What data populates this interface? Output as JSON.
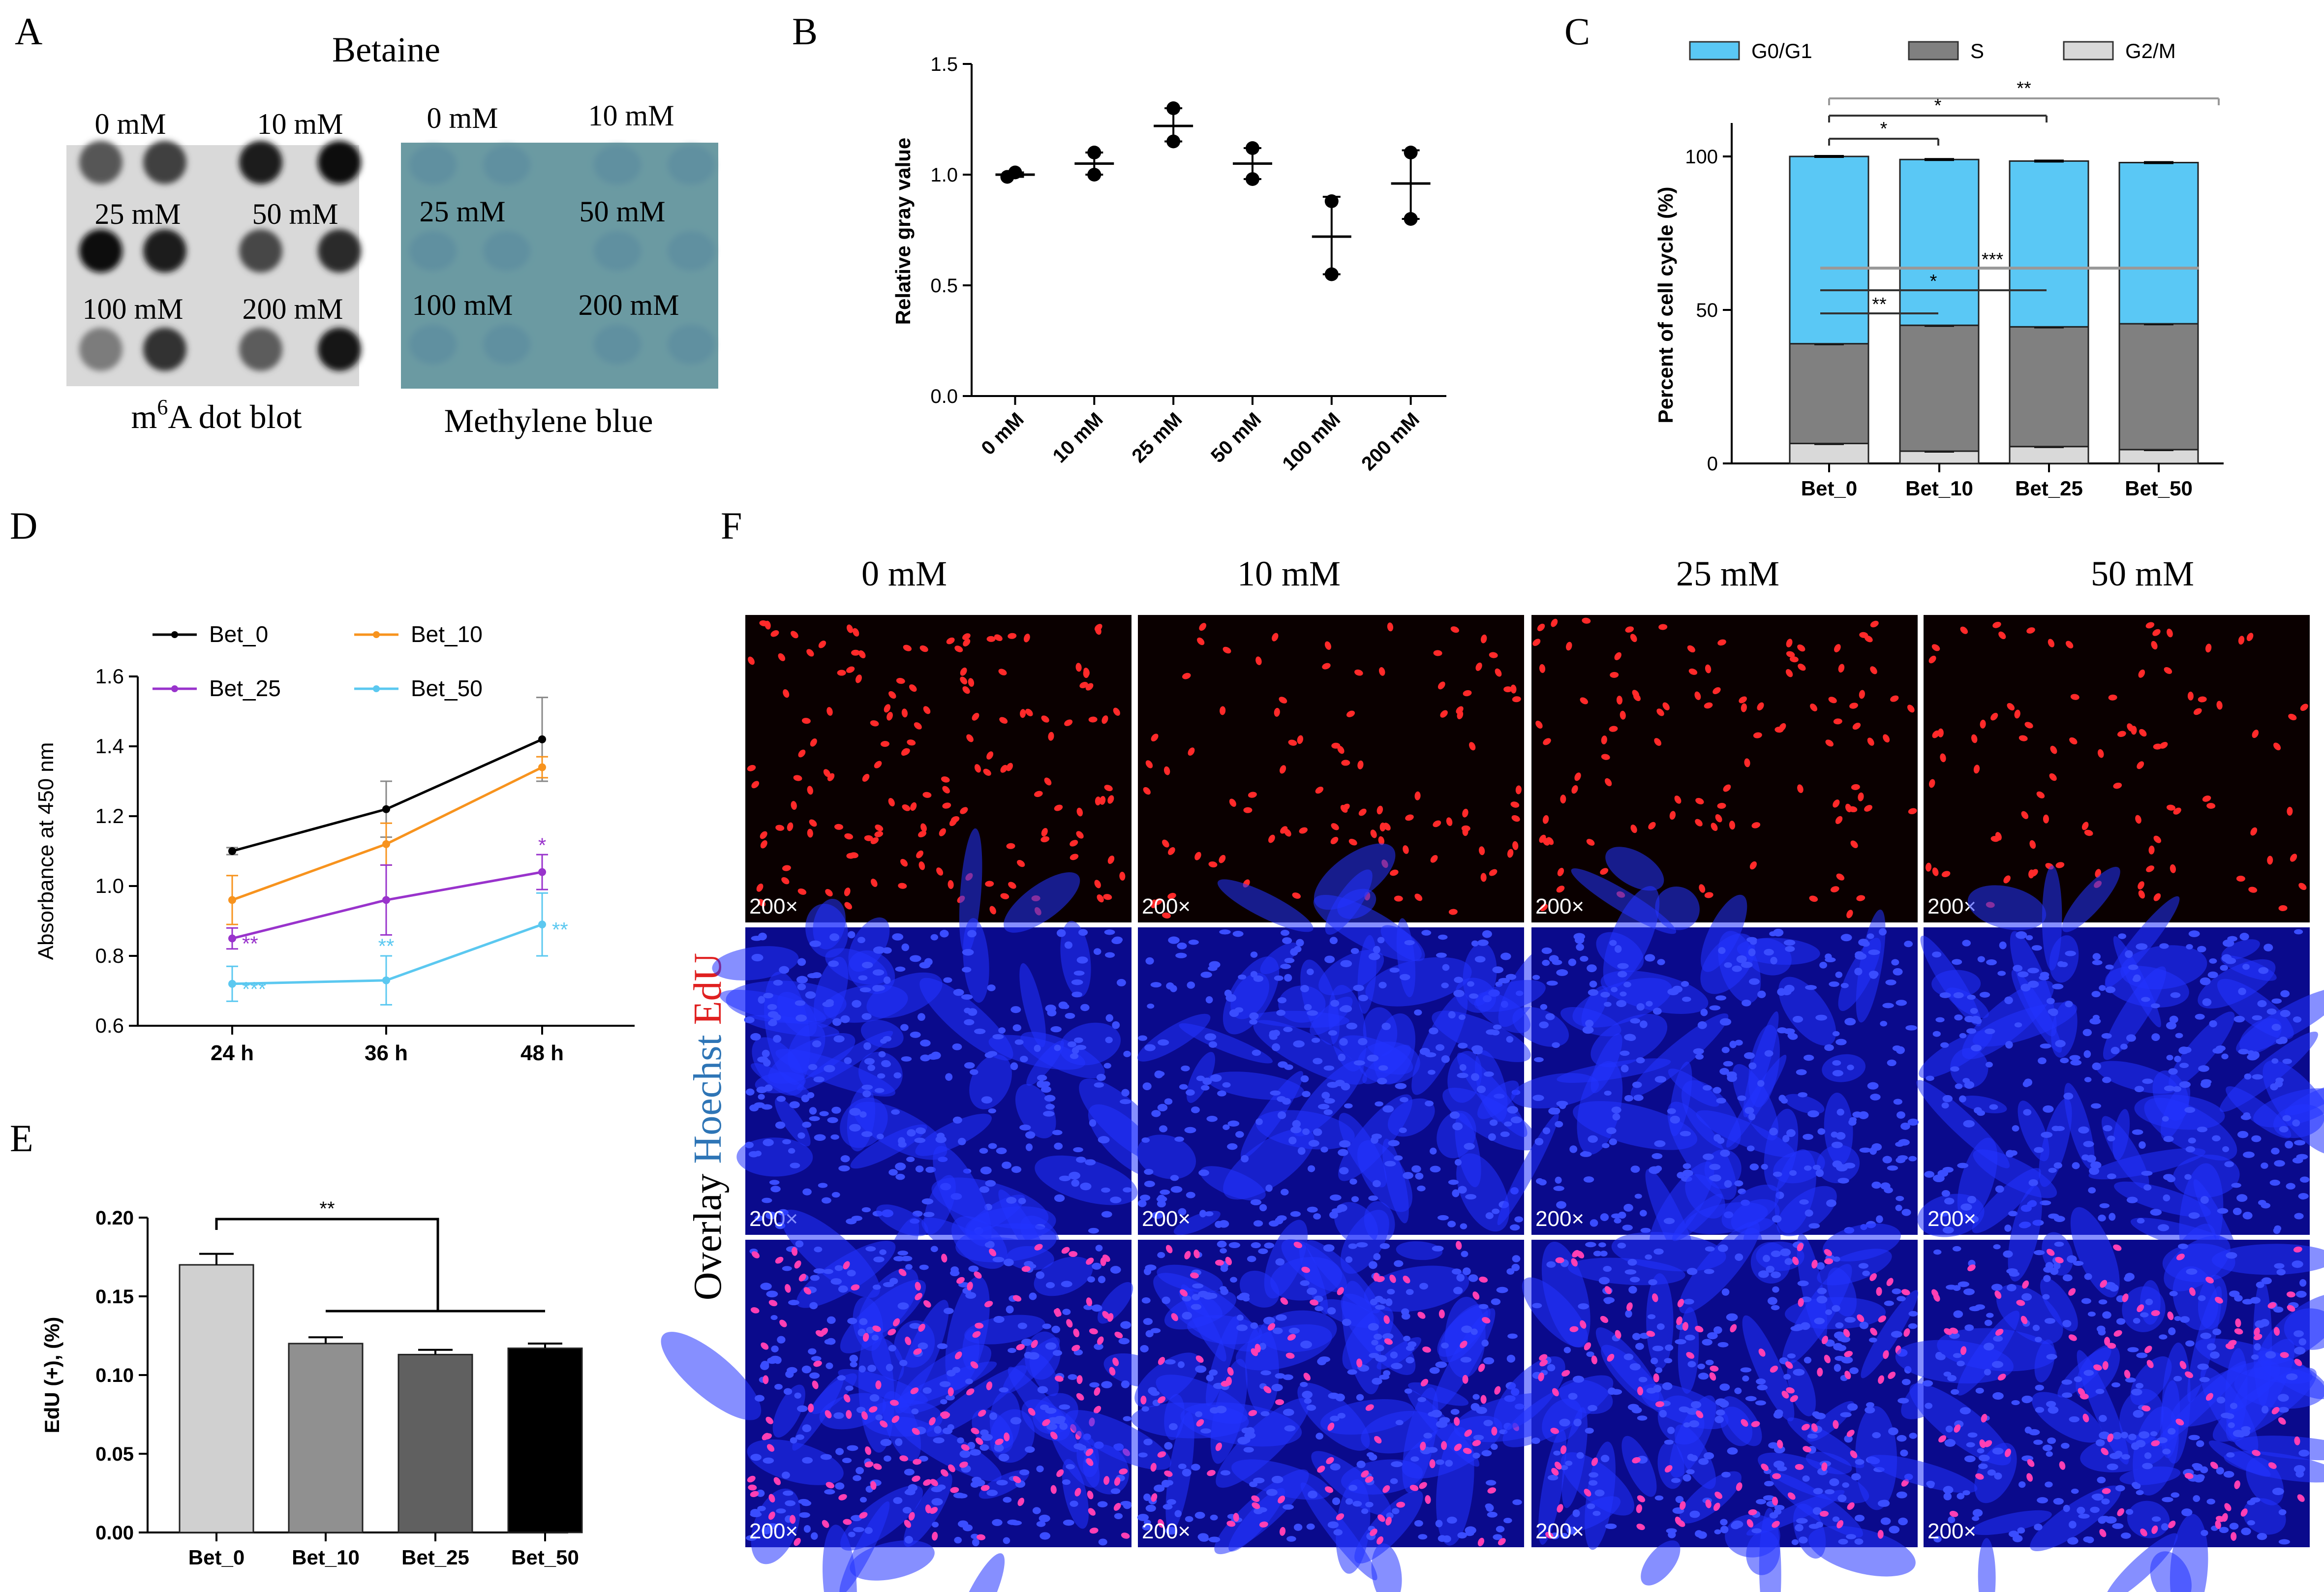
{
  "panelA": {
    "letter": "A",
    "title": "Betaine",
    "left_labels": [
      [
        "0 mM",
        "10 mM"
      ],
      [
        "25 mM",
        "50 mM"
      ],
      [
        "100 mM",
        "200 mM"
      ]
    ],
    "right_labels": [
      [
        "0 mM",
        "10 mM"
      ],
      [
        "25 mM",
        "50 mM"
      ],
      [
        "100 mM",
        "200 mM"
      ]
    ],
    "dot_caption_base": "m",
    "dot_caption_sup": "6",
    "dot_caption_rest": "A dot blot",
    "blue_caption": "Methylene blue",
    "dot_intensity": [
      [
        0.62,
        0.72,
        0.88,
        0.95
      ],
      [
        0.95,
        0.9,
        0.7,
        0.82
      ],
      [
        0.45,
        0.8,
        0.6,
        0.92
      ]
    ]
  },
  "panelB": {
    "letter": "B"
  },
  "panelC": {
    "letter": "C"
  },
  "panelD": {
    "letter": "D"
  },
  "panelE": {
    "letter": "E"
  },
  "panelF": {
    "letter": "F",
    "columns": [
      "0 mM",
      "10 mM",
      "25 mM",
      "50 mM"
    ],
    "row_label_overlay": "Overlay",
    "row_label_hoechst": "Hoechst",
    "row_label_edu": "EdU",
    "magnification": "200×"
  },
  "chart_data": [
    {
      "panel": "B",
      "type": "scatter",
      "ylabel": "Relative gray value",
      "ylim": [
        0.0,
        1.5
      ],
      "yticks": [
        "0.0",
        "0.5",
        "1.0",
        "1.5"
      ],
      "categories": [
        "0 mM",
        "10 mM",
        "25 mM",
        "50 mM",
        "100 mM",
        "200 mM"
      ],
      "points": [
        [
          0.99,
          1.01
        ],
        [
          1.0,
          1.1
        ],
        [
          1.15,
          1.3
        ],
        [
          0.98,
          1.12
        ],
        [
          0.55,
          0.88
        ],
        [
          0.8,
          1.1
        ]
      ],
      "mean": [
        1.0,
        1.05,
        1.22,
        1.05,
        0.72,
        0.96
      ],
      "err_low": [
        0.99,
        1.0,
        1.15,
        0.98,
        0.55,
        0.8
      ],
      "err_high": [
        1.01,
        1.1,
        1.3,
        1.12,
        0.9,
        1.11
      ]
    },
    {
      "panel": "C",
      "type": "bar",
      "stacked": true,
      "ylabel": "Percent of cell cycle (%)",
      "ylim": [
        0,
        100
      ],
      "yticks": [
        "0",
        "50",
        "100"
      ],
      "categories": [
        "Bet_0",
        "Bet_10",
        "Bet_25",
        "Bet_50"
      ],
      "series": [
        {
          "name": "G2/M",
          "values": [
            6.5,
            4.0,
            5.5,
            4.5
          ],
          "color": "#d9d9d9"
        },
        {
          "name": "S",
          "values": [
            32.5,
            41.0,
            39.0,
            41.0
          ],
          "color": "#808080"
        },
        {
          "name": "G0/G1",
          "values": [
            61.0,
            54.0,
            54.0,
            52.5
          ],
          "color": "#5ac8f5"
        }
      ],
      "legend_position": "top",
      "significance": [
        "*",
        "*",
        "**",
        "**",
        "*",
        "***"
      ]
    },
    {
      "panel": "D",
      "type": "line",
      "ylabel": "Absorbance at 450 nm",
      "ylim": [
        0.6,
        1.6
      ],
      "yticks": [
        "0.6",
        "0.8",
        "1.0",
        "1.2",
        "1.4",
        "1.6"
      ],
      "categories": [
        "24 h",
        "36 h",
        "48 h"
      ],
      "series": [
        {
          "name": "Bet_0",
          "values": [
            1.1,
            1.22,
            1.42
          ],
          "err": [
            0.01,
            0.08,
            0.12
          ],
          "color": "#000000"
        },
        {
          "name": "Bet_10",
          "values": [
            0.96,
            1.12,
            1.34
          ],
          "err": [
            0.07,
            0.06,
            0.03
          ],
          "color": "#f7931e"
        },
        {
          "name": "Bet_25",
          "values": [
            0.85,
            0.96,
            1.04
          ],
          "err": [
            0.03,
            0.1,
            0.05
          ],
          "color": "#9933cc"
        },
        {
          "name": "Bet_50",
          "values": [
            0.72,
            0.73,
            0.89
          ],
          "err": [
            0.05,
            0.07,
            0.09
          ],
          "color": "#5bc8f0"
        }
      ],
      "annotations": [
        {
          "series": "Bet_25",
          "x": "24 h",
          "text": "**"
        },
        {
          "series": "Bet_50",
          "x": "24 h",
          "text": "***"
        },
        {
          "series": "Bet_50",
          "x": "36 h",
          "text": "**"
        },
        {
          "series": "Bet_25",
          "x": "48 h",
          "text": "*"
        },
        {
          "series": "Bet_50",
          "x": "48 h",
          "text": "**"
        }
      ]
    },
    {
      "panel": "E",
      "type": "bar",
      "ylabel": "EdU (+), (%)",
      "ylim": [
        0.0,
        0.2
      ],
      "yticks": [
        "0.00",
        "0.05",
        "0.10",
        "0.15",
        "0.20"
      ],
      "categories": [
        "Bet_0",
        "Bet_10",
        "Bet_25",
        "Bet_50"
      ],
      "values": [
        0.17,
        0.12,
        0.113,
        0.117
      ],
      "err": [
        0.007,
        0.004,
        0.003,
        0.003
      ],
      "colors": [
        "#d0d0d0",
        "#909090",
        "#606060",
        "#000000"
      ],
      "significance": "**"
    }
  ]
}
